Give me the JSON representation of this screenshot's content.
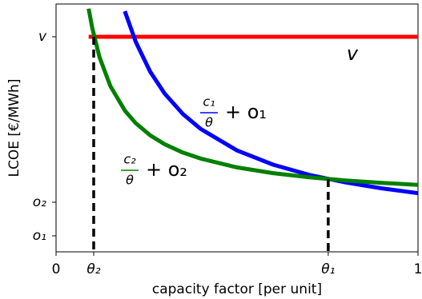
{
  "chart_data": {
    "type": "line",
    "xlabel": "capacity factor [per unit]",
    "ylabel": "LCOE [€/MWh]",
    "xlim": [
      0,
      1
    ],
    "ylim": [
      0,
      1.55
    ],
    "xticks": [
      0,
      {
        "value": 0.104,
        "label": "θ₂"
      },
      {
        "value": 0.752,
        "label": "θ₁"
      },
      1
    ],
    "yticks": [
      {
        "value": 0.1,
        "label": "o₁"
      },
      {
        "value": 0.31,
        "label": "o₂"
      },
      {
        "value": 1.345,
        "label": "v"
      }
    ],
    "x": [
      0.09,
      0.1,
      0.12,
      0.15,
      0.19,
      0.22,
      0.26,
      0.3,
      0.35,
      0.4,
      0.5,
      0.6,
      0.7,
      0.8,
      0.9,
      1.0
    ],
    "series": [
      {
        "color": "#ff0000",
        "values": [
          1.345,
          1.345,
          1.345,
          1.345,
          1.345,
          1.345,
          1.345,
          1.345,
          1.345,
          1.345,
          1.345,
          1.345,
          1.345,
          1.345,
          1.345,
          1.345
        ]
      },
      {
        "color": "#0000ff",
        "values": [
          null,
          null,
          null,
          null,
          1.505,
          1.314,
          1.127,
          0.99,
          0.863,
          0.768,
          0.634,
          0.545,
          0.481,
          0.434,
          0.397,
          0.367
        ]
      },
      {
        "color": "#008000",
        "values": [
          1.521,
          1.4,
          1.218,
          1.037,
          0.884,
          0.805,
          0.729,
          0.673,
          0.621,
          0.583,
          0.528,
          0.492,
          0.466,
          0.446,
          0.431,
          0.419
        ]
      }
    ],
    "drop_lines": [
      {
        "x": 0.104,
        "y": 1.345
      },
      {
        "x": 0.752,
        "y": 0.455
      }
    ],
    "annotations": [
      {
        "text": "v",
        "color": "#ff0000"
      },
      {
        "numerator": "c₁",
        "denominator": "θ",
        "rest": "+ o₁",
        "color": "#0000ff"
      },
      {
        "numerator": "c₂",
        "denominator": "θ",
        "rest": "+ o₂",
        "color": "#008000"
      }
    ]
  }
}
